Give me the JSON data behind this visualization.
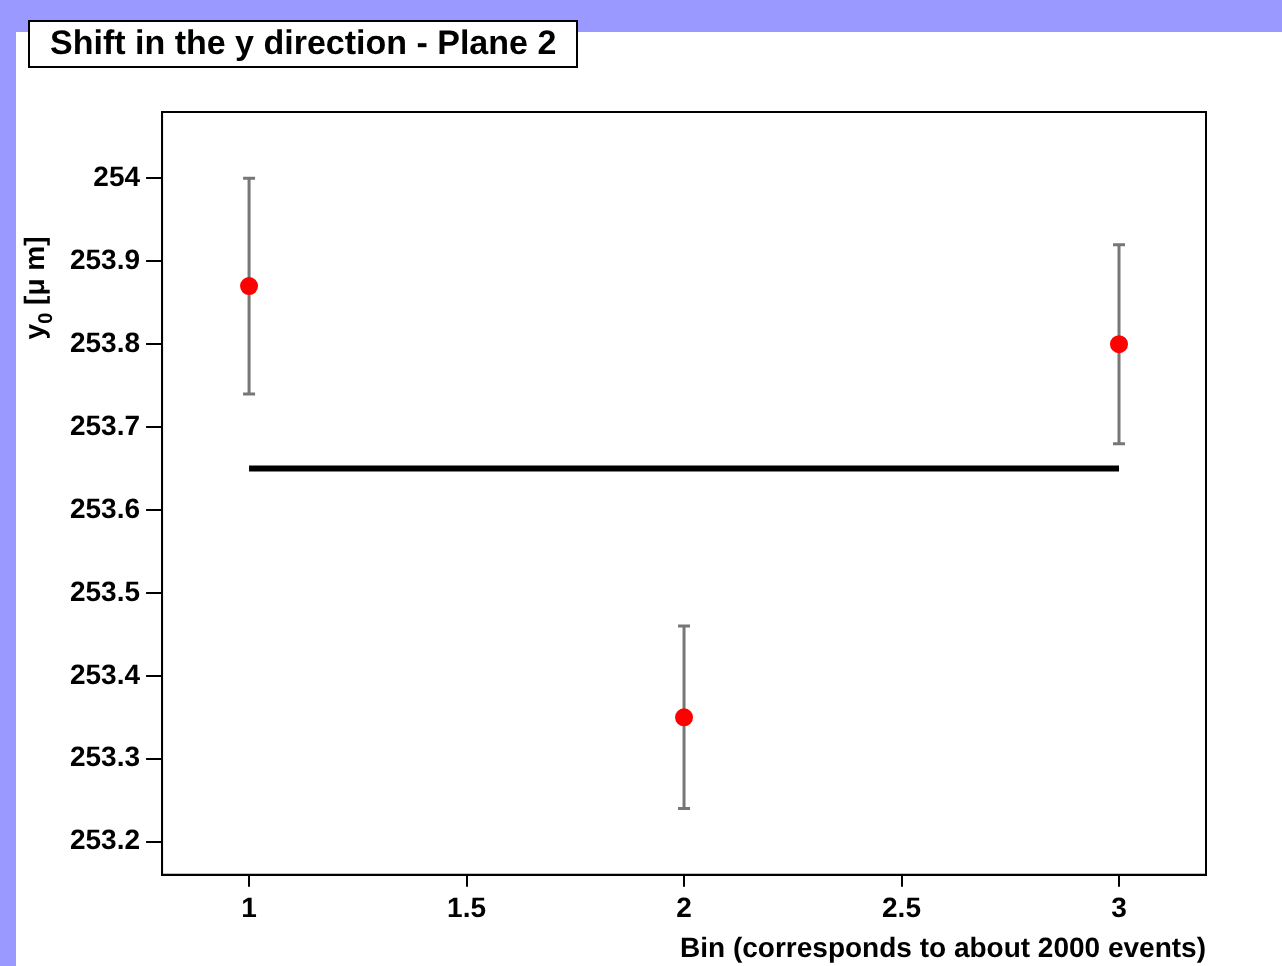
{
  "chart_data": {
    "type": "scatter",
    "title": "Shift in the y direction - Plane 2",
    "xlabel": "Bin (corresponds to about 2000 events)",
    "ylabel": "y$_{0}$ [μ m]",
    "xlim": [
      0.8,
      3.2
    ],
    "xticks": [
      1,
      1.5,
      2,
      2.5,
      3
    ],
    "ylim": [
      253.16,
      254.08
    ],
    "yticks": [
      253.2,
      253.3,
      253.4,
      253.5,
      253.6,
      253.7,
      253.8,
      253.9,
      254
    ],
    "grid": false,
    "legend": false,
    "series": [
      {
        "type": "scatter",
        "color": "#ff0000",
        "marker": "circle",
        "x": [
          1,
          2,
          3
        ],
        "values": [
          253.87,
          253.35,
          253.8
        ],
        "errors": [
          0.13,
          0.11,
          0.12
        ]
      },
      {
        "type": "line",
        "color": "#000000",
        "x": [
          1,
          3
        ],
        "values": [
          253.65,
          253.65
        ],
        "line_style": "solid"
      }
    ]
  }
}
